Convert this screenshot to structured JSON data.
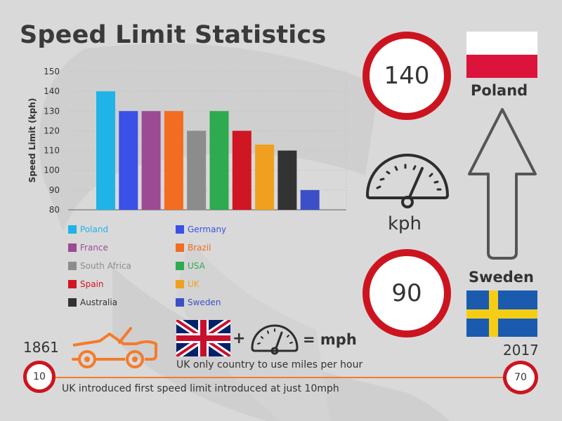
{
  "title": "Speed Limit Statistics",
  "chart_data": {
    "type": "bar",
    "ylabel": "Speed Limit (kph)",
    "ylim": [
      80,
      150
    ],
    "yticks": [
      80,
      90,
      100,
      110,
      120,
      130,
      140,
      150
    ],
    "grid": true,
    "categories": [
      "Poland",
      "Germany",
      "France",
      "Brazil",
      "South Africa",
      "USA",
      "Spain",
      "UK",
      "Australia",
      "Sweden"
    ],
    "values": [
      140,
      130,
      130,
      130,
      120,
      130,
      120,
      113,
      110,
      90
    ],
    "colors": [
      "#1fb3e8",
      "#3b50e6",
      "#9b4a93",
      "#f26c21",
      "#8c8c8c",
      "#2eaa4f",
      "#d01523",
      "#f0a01e",
      "#333333",
      "#3d4fc7"
    ],
    "legend_placement": "bottom"
  },
  "legend": [
    {
      "label": "Poland",
      "color": "#1fb3e8",
      "text_color": "#1fb3e8"
    },
    {
      "label": "Germany",
      "color": "#3b50e6",
      "text_color": "#3b50e6"
    },
    {
      "label": "France",
      "color": "#9b4a93",
      "text_color": "#9b4a93"
    },
    {
      "label": "Brazil",
      "color": "#f26c21",
      "text_color": "#f26c21"
    },
    {
      "label": "South Africa",
      "color": "#8c8c8c",
      "text_color": "#8c8c8c"
    },
    {
      "label": "USA",
      "color": "#2eaa4f",
      "text_color": "#2eaa4f"
    },
    {
      "label": "Spain",
      "color": "#d01523",
      "text_color": "#d01523"
    },
    {
      "label": "UK",
      "color": "#f0a01e",
      "text_color": "#f0a01e"
    },
    {
      "label": "Australia",
      "color": "#333333",
      "text_color": "#333333"
    },
    {
      "label": "Sweden",
      "color": "#3d4fc7",
      "text_color": "#3d4fc7"
    }
  ],
  "right_panel": {
    "top_sign": "140",
    "top_country": "Poland",
    "unit": "kph",
    "bottom_sign": "90",
    "bottom_country": "Sweden"
  },
  "uk_row": {
    "equation_plus": "+",
    "equation_equals": "= mph",
    "caption": "UK only country to use miles per hour"
  },
  "timeline": {
    "start_year": "1861",
    "end_year": "2017",
    "start_value": "10",
    "end_value": "70",
    "caption": "UK introduced first speed limit introduced at just 10mph"
  },
  "colors": {
    "sign_red": "#cc1420",
    "car_orange": "#f47b2a",
    "background": "#d9d9d9"
  }
}
